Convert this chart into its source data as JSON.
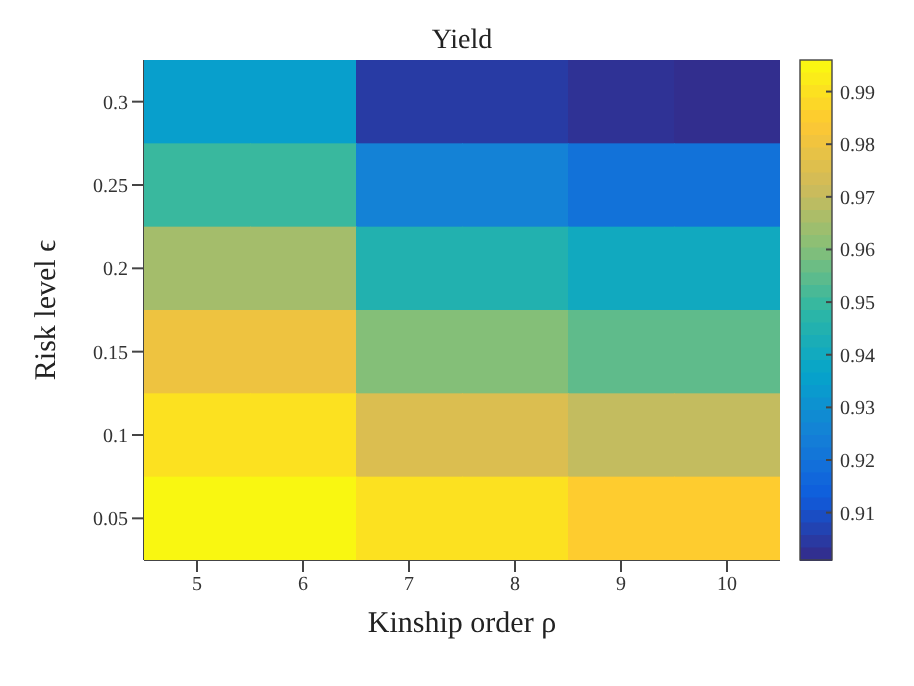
{
  "chart_data": {
    "type": "heatmap",
    "title": "Yield",
    "xlabel": "Kinship order ρ",
    "ylabel": "Risk level ϵ",
    "categories": [
      "5",
      "6",
      "7",
      "8",
      "9",
      "10"
    ],
    "y_categories": [
      "0.3",
      "0.25",
      "0.2",
      "0.15",
      "0.1",
      "0.05"
    ],
    "cells": [
      [
        0.935,
        0.935,
        0.905,
        0.905,
        0.903,
        0.902
      ],
      [
        0.95,
        0.95,
        0.925,
        0.925,
        0.92,
        0.92
      ],
      [
        0.965,
        0.965,
        0.945,
        0.945,
        0.94,
        0.94
      ],
      [
        0.98,
        0.98,
        0.96,
        0.96,
        0.955,
        0.955
      ],
      [
        0.99,
        0.99,
        0.975,
        0.975,
        0.97,
        0.97
      ],
      [
        0.995,
        0.995,
        0.99,
        0.99,
        0.985,
        0.985
      ]
    ],
    "clim": [
      0.901,
      0.996
    ],
    "cticks": [
      0.91,
      0.92,
      0.93,
      0.94,
      0.95,
      0.96,
      0.97,
      0.98,
      0.99
    ]
  }
}
